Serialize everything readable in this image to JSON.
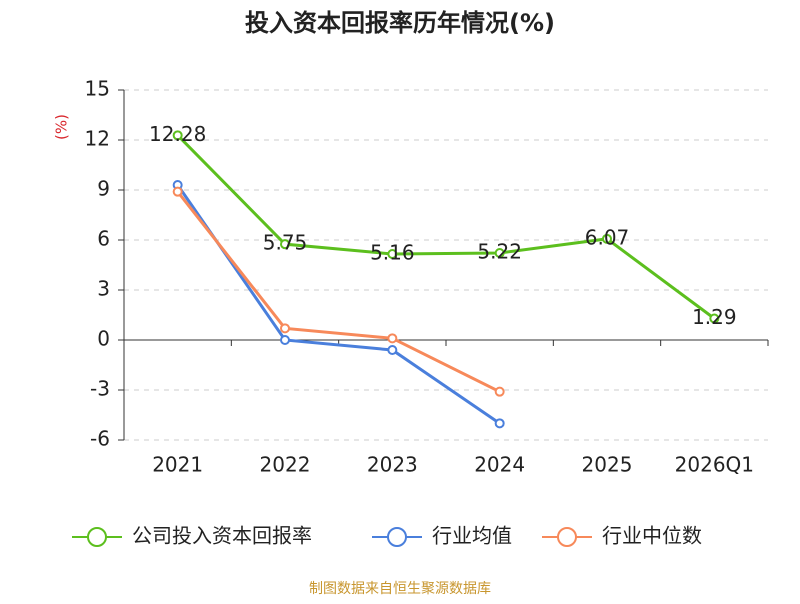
{
  "chart_data": {
    "type": "line",
    "title": "投入资本回报率历年情况(%)",
    "y_label": "(%)",
    "categories": [
      "2021",
      "2022",
      "2023",
      "2024",
      "2025",
      "2026Q1"
    ],
    "series": [
      {
        "name": "公司投入资本回报率",
        "color": "#5cbf1e",
        "values": [
          12.28,
          5.75,
          5.16,
          5.22,
          6.07,
          1.29
        ],
        "show_labels": true
      },
      {
        "name": "行业均值",
        "color": "#4a7fdc",
        "values": [
          9.3,
          0.0,
          -0.6,
          -5.0,
          null,
          null
        ]
      },
      {
        "name": "行业中位数",
        "color": "#f7895a",
        "values": [
          8.9,
          0.7,
          0.1,
          -3.1,
          null,
          null
        ]
      }
    ],
    "ylim": [
      -6,
      15
    ],
    "yticks": [
      -6,
      -3,
      0,
      3,
      6,
      9,
      12,
      15
    ],
    "grid": true,
    "source": "制图数据来自恒生聚源数据库"
  }
}
